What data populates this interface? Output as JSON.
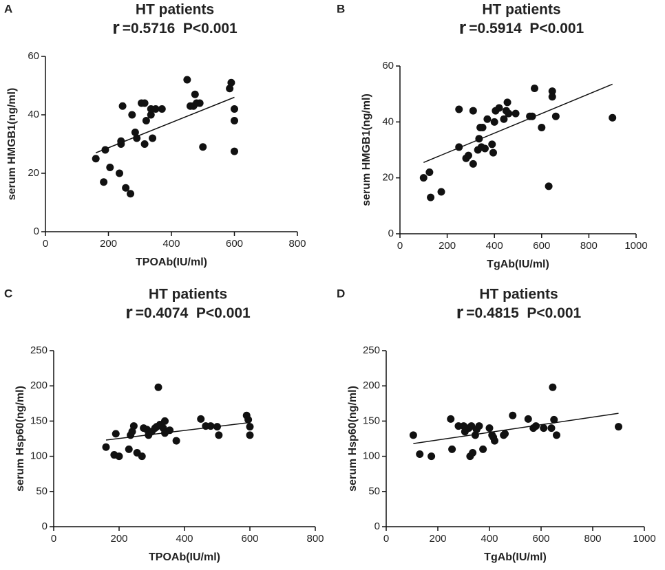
{
  "chart_data": [
    {
      "type": "scatter",
      "panel": "A",
      "title": "HT patients",
      "stat_symbol": "r",
      "stat_text": "=0.5716  P<0.001",
      "xlabel": "TPOAb(IU/ml)",
      "ylabel": "serum HMGB1(ng/ml)",
      "xlim": [
        0,
        800
      ],
      "xticks": [
        0,
        200,
        400,
        600,
        800
      ],
      "ylim": [
        0,
        60
      ],
      "yticks": [
        0,
        20,
        40,
        60
      ],
      "color": "#111111",
      "x": [
        160,
        185,
        190,
        205,
        235,
        240,
        240,
        245,
        255,
        270,
        275,
        285,
        290,
        305,
        315,
        315,
        320,
        335,
        335,
        340,
        350,
        370,
        450,
        460,
        470,
        475,
        480,
        490,
        500,
        585,
        590,
        600,
        600,
        600
      ],
      "values": [
        25,
        17,
        28,
        22,
        20,
        30,
        31,
        43,
        15,
        13,
        40,
        34,
        32,
        44,
        44,
        30,
        38,
        40,
        42,
        32,
        42,
        42,
        52,
        43,
        43,
        47,
        44,
        44,
        29,
        49,
        51,
        42,
        38,
        27.5
      ],
      "trendline": {
        "x": [
          160,
          600
        ],
        "y": [
          27,
          46
        ]
      }
    },
    {
      "type": "scatter",
      "panel": "B",
      "title": "HT patients",
      "stat_symbol": "r",
      "stat_text": "=0.5914  P<0.001",
      "xlabel": "TgAb(IU/ml)",
      "ylabel": "serum HMGB1(ng/ml)",
      "xlim": [
        0,
        1000
      ],
      "xticks": [
        0,
        200,
        400,
        600,
        800,
        1000
      ],
      "ylim": [
        0,
        60
      ],
      "yticks": [
        0,
        20,
        40,
        60
      ],
      "color": "#111111",
      "x": [
        100,
        125,
        130,
        175,
        250,
        250,
        280,
        290,
        310,
        310,
        330,
        335,
        340,
        345,
        350,
        360,
        370,
        390,
        395,
        400,
        405,
        420,
        440,
        450,
        455,
        460,
        490,
        550,
        560,
        570,
        600,
        630,
        645,
        645,
        660,
        900
      ],
      "values": [
        20,
        22,
        13,
        15,
        31,
        44.5,
        27,
        28,
        25,
        44,
        30,
        34,
        38,
        31,
        38,
        30.5,
        41,
        32,
        29,
        40,
        44,
        45,
        41,
        44,
        47,
        43,
        43,
        42,
        42,
        52,
        38,
        17,
        51,
        49,
        42,
        41.5
      ],
      "trendline": {
        "x": [
          100,
          900
        ],
        "y": [
          25.5,
          53.5
        ]
      }
    },
    {
      "type": "scatter",
      "panel": "C",
      "title": "HT patients",
      "stat_symbol": "r",
      "stat_text": "=0.4074  P<0.001",
      "xlabel": "TPOAb(IU/ml)",
      "ylabel": "serum Hsp60(ng/ml)",
      "xlim": [
        0,
        800
      ],
      "xticks": [
        0,
        200,
        400,
        600,
        800
      ],
      "ylim": [
        0,
        250
      ],
      "yticks": [
        0,
        50,
        100,
        150,
        200,
        250
      ],
      "color": "#111111",
      "x": [
        160,
        185,
        190,
        200,
        230,
        235,
        240,
        245,
        255,
        270,
        275,
        285,
        290,
        300,
        310,
        315,
        320,
        325,
        335,
        340,
        340,
        355,
        375,
        450,
        465,
        480,
        500,
        505,
        590,
        595,
        600,
        600
      ],
      "values": [
        113,
        102,
        132,
        100,
        110,
        130,
        135,
        143,
        105,
        100,
        140,
        138,
        130,
        135,
        140,
        142,
        198,
        145,
        140,
        150,
        133,
        137,
        122,
        153,
        143,
        143,
        142,
        130,
        158,
        152,
        142,
        130
      ],
      "trendline": {
        "x": [
          160,
          600
        ],
        "y": [
          123,
          148
        ]
      }
    },
    {
      "type": "scatter",
      "panel": "D",
      "title": "HT patients",
      "stat_symbol": "r",
      "stat_text": "=0.4815  P<0.001",
      "xlabel": "TgAb(IU/ml)",
      "ylabel": "serum Hsp60(ng/ml)",
      "xlim": [
        0,
        1000
      ],
      "xticks": [
        0,
        200,
        400,
        600,
        800,
        1000
      ],
      "ylim": [
        0,
        250
      ],
      "yticks": [
        0,
        50,
        100,
        150,
        200,
        250
      ],
      "color": "#111111",
      "x": [
        105,
        130,
        175,
        250,
        255,
        280,
        300,
        305,
        320,
        325,
        330,
        335,
        345,
        350,
        360,
        375,
        400,
        410,
        415,
        420,
        455,
        460,
        490,
        550,
        570,
        580,
        610,
        640,
        645,
        650,
        660,
        900
      ],
      "values": [
        130,
        103,
        100,
        153,
        110,
        143,
        143,
        135,
        140,
        100,
        143,
        105,
        130,
        138,
        143,
        110,
        140,
        130,
        127,
        122,
        130,
        132,
        158,
        153,
        140,
        143,
        140,
        140,
        198,
        152,
        130,
        142
      ],
      "trendline": {
        "x": [
          105,
          900
        ],
        "y": [
          118,
          161
        ]
      }
    }
  ]
}
